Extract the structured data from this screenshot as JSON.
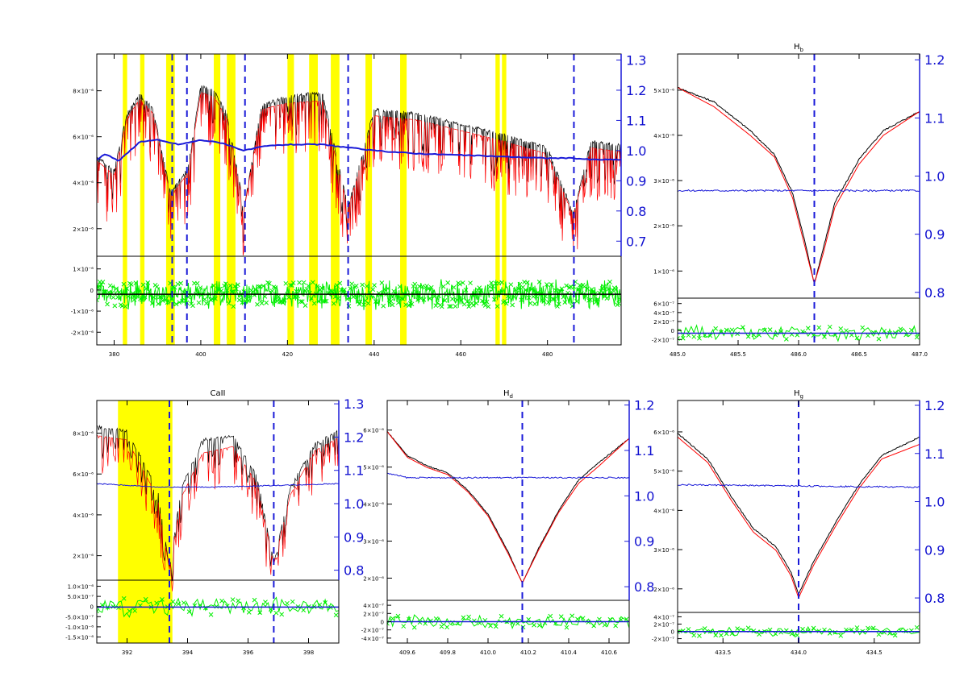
{
  "colors": {
    "observed": "#000000",
    "model": "#ff0000",
    "ratio": "#1a1ad8",
    "residual": "#00ee00",
    "masked_region": "#ffff00",
    "line_marker": "#1a1ad8"
  },
  "chart_data": [
    {
      "id": "full",
      "type": "line",
      "title": "",
      "xlim": [
        376,
        497
      ],
      "x_ticks": [
        380,
        400,
        420,
        440,
        460,
        480
      ],
      "y_ticks_left": [
        "8×10⁻⁶",
        "6×10⁻⁶",
        "4×10⁻⁶",
        "2×10⁻⁶"
      ],
      "y_ticks_right": [
        "1.3",
        "1.2",
        "1.1",
        "1.0",
        "0.9",
        "0.8",
        "0.7"
      ],
      "resid_ticks": [
        "1×10⁻⁶",
        "0",
        "-1×10⁻⁶",
        "-2×10⁻⁶"
      ],
      "masked_bands": [
        [
          382,
          383
        ],
        [
          386,
          387
        ],
        [
          392,
          394
        ],
        [
          403,
          404.5
        ],
        [
          406,
          408
        ],
        [
          420,
          421.5
        ],
        [
          425,
          427
        ],
        [
          430,
          432
        ],
        [
          438,
          439.5
        ],
        [
          446,
          447.5
        ],
        [
          468,
          469
        ],
        [
          469.5,
          470.5
        ]
      ],
      "line_markers": [
        393.4,
        396.8,
        410.2,
        434.0,
        486.1
      ],
      "series": [
        {
          "name": "observed",
          "x": [
            376,
            380,
            383,
            386,
            389,
            393,
            397,
            400,
            403,
            406,
            410,
            414,
            420,
            428,
            434,
            440,
            450,
            460,
            470,
            480,
            486,
            490,
            497
          ],
          "y": [
            5.2,
            4.5,
            7.2,
            8.1,
            7.4,
            3.5,
            4.6,
            8.5,
            8.3,
            7.2,
            2.8,
            7.6,
            8.0,
            8.2,
            2.8,
            7.4,
            7.2,
            6.7,
            6.2,
            5.6,
            2.5,
            5.9,
            5.7
          ]
        },
        {
          "name": "model",
          "x": [
            376,
            380,
            383,
            386,
            389,
            393,
            397,
            400,
            403,
            406,
            410,
            414,
            420,
            428,
            434,
            440,
            450,
            460,
            470,
            480,
            486,
            490,
            497
          ],
          "y": [
            5.0,
            4.3,
            7.0,
            7.9,
            7.2,
            3.3,
            4.4,
            8.2,
            8.0,
            7.0,
            2.7,
            7.4,
            7.7,
            7.8,
            2.7,
            7.1,
            6.9,
            6.4,
            5.9,
            5.3,
            2.4,
            5.6,
            5.4
          ]
        },
        {
          "name": "ratio",
          "axis": "right",
          "x": [
            376,
            378,
            381,
            386,
            390,
            395,
            400,
            405,
            410,
            415,
            420,
            428,
            434,
            440,
            450,
            460,
            470,
            480,
            486,
            490,
            497
          ],
          "y": [
            0.97,
            0.99,
            0.965,
            1.03,
            1.035,
            1.02,
            1.035,
            1.025,
            1.0,
            1.015,
            1.02,
            1.02,
            1.01,
            1.0,
            0.99,
            0.985,
            0.98,
            0.975,
            0.975,
            0.97,
            0.97
          ]
        }
      ]
    },
    {
      "id": "hb",
      "type": "line",
      "title": "H<sub>b</sub>",
      "title_text": "Hb",
      "xlim": [
        485.0,
        487.0
      ],
      "x_ticks": [
        "485.0",
        "485.5",
        "486.0",
        "486.5",
        "487.0"
      ],
      "y_ticks_left": [
        "5×10⁻⁶",
        "4×10⁻⁶",
        "3×10⁻⁶",
        "2×10⁻⁶",
        "1×10⁻⁶"
      ],
      "y_ticks_right": [
        "1.2",
        "1.1",
        "1.0",
        "0.9",
        "0.8"
      ],
      "resid_ticks": [
        "6×10⁻⁷",
        "4×10⁻⁷",
        "2×10⁻⁷",
        "0",
        "-2×10⁻⁷"
      ],
      "line_markers": [
        486.13
      ],
      "series": [
        {
          "name": "observed",
          "x": [
            485.0,
            485.3,
            485.6,
            485.8,
            485.95,
            486.05,
            486.13,
            486.2,
            486.3,
            486.5,
            486.7,
            487.0
          ],
          "y": [
            5.2,
            4.9,
            4.3,
            3.8,
            3.0,
            2.0,
            1.1,
            1.8,
            2.8,
            3.7,
            4.3,
            4.7
          ]
        },
        {
          "name": "model",
          "x": [
            485.0,
            485.3,
            485.6,
            485.8,
            485.95,
            486.05,
            486.13,
            486.2,
            486.3,
            486.5,
            486.7,
            487.0
          ],
          "y": [
            5.2,
            4.8,
            4.2,
            3.75,
            2.9,
            1.9,
            1.1,
            1.7,
            2.7,
            3.6,
            4.2,
            4.7
          ]
        },
        {
          "name": "ratio",
          "axis": "right",
          "x": [
            485.0,
            487.0
          ],
          "y": [
            0.975,
            0.975
          ]
        }
      ]
    },
    {
      "id": "caii",
      "type": "line",
      "title": "CaII",
      "xlim": [
        391,
        399
      ],
      "x_ticks": [
        392,
        394,
        396,
        398
      ],
      "y_ticks_left": [
        "8×10⁻⁶",
        "6×10⁻⁶",
        "4×10⁻⁶",
        "2×10⁻⁶"
      ],
      "y_ticks_right": [
        "1.3",
        "1.2",
        "1.1",
        "1.0",
        "0.9",
        "0.8"
      ],
      "resid_ticks": [
        "1.0×10⁻⁶",
        "5.0×10⁻⁷",
        "0",
        "-5.0×10⁻⁷",
        "-1.0×10⁻⁶",
        "-1.5×10⁻⁶"
      ],
      "masked_bands": [
        [
          391.7,
          393.5
        ]
      ],
      "line_markers": [
        393.4,
        396.85
      ],
      "series": [
        {
          "name": "observed",
          "x": [
            391,
            392,
            393,
            393.4,
            393.8,
            394.5,
            395.5,
            396.3,
            396.85,
            397.4,
            398.2,
            399
          ],
          "y": [
            7.8,
            7.6,
            5.0,
            1.4,
            5.0,
            7.2,
            7.4,
            5.5,
            1.6,
            5.0,
            7.0,
            7.6
          ]
        },
        {
          "name": "model",
          "x": [
            391,
            392,
            393,
            393.4,
            393.8,
            394.5,
            395.5,
            396.3,
            396.85,
            397.4,
            398.2,
            399
          ],
          "y": [
            7.4,
            7.2,
            4.6,
            1.3,
            4.6,
            6.6,
            6.9,
            5.2,
            1.5,
            4.7,
            6.7,
            7.3
          ]
        },
        {
          "name": "ratio",
          "axis": "right",
          "x": [
            391,
            393,
            395,
            397,
            399
          ],
          "y": [
            1.06,
            1.05,
            1.05,
            1.055,
            1.06
          ]
        }
      ]
    },
    {
      "id": "hd",
      "type": "line",
      "title": "H<sub>d</sub>",
      "title_text": "Hd",
      "xlim": [
        409.5,
        410.7
      ],
      "x_ticks": [
        "409.6",
        "409.8",
        "410.0",
        "410.2",
        "410.4",
        "410.6"
      ],
      "y_ticks_left": [
        "6×10⁻⁶",
        "5×10⁻⁶",
        "4×10⁻⁶",
        "3×10⁻⁶",
        "2×10⁻⁶"
      ],
      "y_ticks_right": [
        "1.2",
        "1.1",
        "1.0",
        "0.9",
        "0.8"
      ],
      "resid_ticks": [
        "4×10⁻⁷",
        "2×10⁻⁷",
        "0",
        "-2×10⁻⁷",
        "-4×10⁻⁷"
      ],
      "line_markers": [
        410.17
      ],
      "series": [
        {
          "name": "observed",
          "x": [
            409.5,
            409.6,
            409.7,
            409.8,
            409.9,
            410.0,
            410.1,
            410.17,
            410.25,
            410.35,
            410.45,
            410.55,
            410.7
          ],
          "y": [
            6.0,
            5.3,
            5.0,
            4.8,
            4.3,
            3.6,
            2.5,
            1.6,
            2.6,
            3.7,
            4.6,
            5.1,
            5.8
          ]
        },
        {
          "name": "model",
          "x": [
            409.5,
            409.6,
            409.7,
            409.8,
            409.9,
            410.0,
            410.1,
            410.17,
            410.25,
            410.35,
            410.45,
            410.55,
            410.7
          ],
          "y": [
            6.0,
            5.25,
            4.95,
            4.75,
            4.25,
            3.55,
            2.45,
            1.6,
            2.55,
            3.65,
            4.5,
            5.0,
            5.8
          ]
        },
        {
          "name": "ratio",
          "axis": "right",
          "x": [
            409.5,
            409.6,
            410.7
          ],
          "y": [
            1.05,
            1.04,
            1.04
          ]
        }
      ]
    },
    {
      "id": "hg",
      "type": "line",
      "title": "H<sub>g</sub>",
      "title_text": "Hg",
      "xlim": [
        433.2,
        434.8
      ],
      "x_ticks": [
        "433.5",
        "434.0",
        "434.5"
      ],
      "y_ticks_left": [
        "6×10⁻⁶",
        "5×10⁻⁶",
        "4×10⁻⁶",
        "3×10⁻⁶",
        "2×10⁻⁶"
      ],
      "y_ticks_right": [
        "1.2",
        "1.1",
        "1.0",
        "0.9",
        "0.8"
      ],
      "resid_ticks": [
        "4×10⁻⁷",
        "2×10⁻⁷",
        "0",
        "-2×10⁻⁷"
      ],
      "line_markers": [
        434.0
      ],
      "series": [
        {
          "name": "observed",
          "x": [
            433.2,
            433.4,
            433.55,
            433.7,
            433.85,
            433.95,
            434.0,
            434.1,
            434.25,
            434.4,
            434.55,
            434.8
          ],
          "y": [
            6.0,
            5.3,
            4.3,
            3.4,
            2.9,
            2.2,
            1.6,
            2.5,
            3.6,
            4.6,
            5.4,
            5.9
          ]
        },
        {
          "name": "model",
          "x": [
            433.2,
            433.4,
            433.55,
            433.7,
            433.85,
            433.95,
            434.0,
            434.1,
            434.25,
            434.4,
            434.55,
            434.8
          ],
          "y": [
            5.9,
            5.2,
            4.2,
            3.3,
            2.8,
            2.1,
            1.5,
            2.4,
            3.5,
            4.5,
            5.3,
            5.7
          ]
        },
        {
          "name": "ratio",
          "axis": "right",
          "x": [
            433.2,
            434.8
          ],
          "y": [
            1.035,
            1.03
          ]
        }
      ]
    }
  ]
}
